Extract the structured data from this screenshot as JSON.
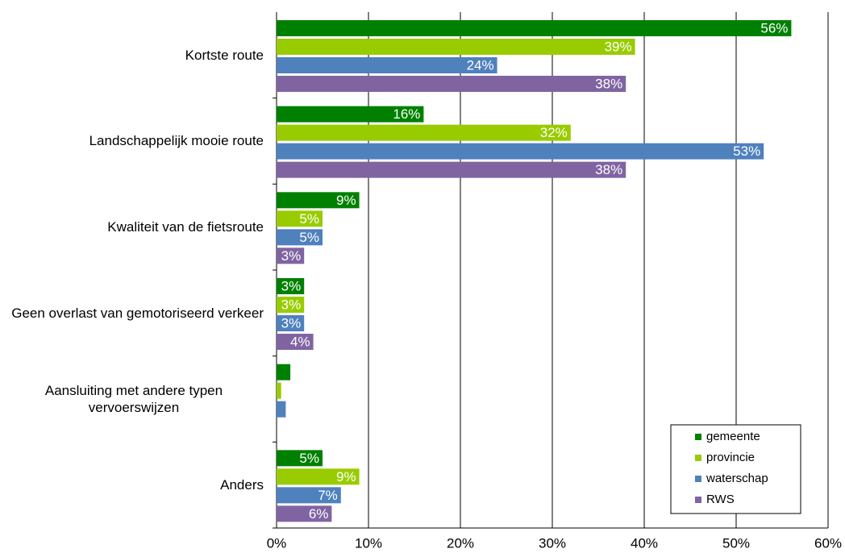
{
  "chart_data": {
    "type": "bar",
    "orientation": "horizontal",
    "categories": [
      "Kortste route",
      "Landschappelijk mooie route",
      "Kwaliteit van de fietsroute",
      "Geen overlast van gemotoriseerd verkeer",
      "Aansluiting met andere typen vervoerswijzen",
      "Anders"
    ],
    "series": [
      {
        "name": "gemeente",
        "color": "#008000",
        "values": [
          56,
          16,
          9,
          3,
          1.5,
          5
        ],
        "value_labels": [
          "56%",
          "16%",
          "9%",
          "3%",
          null,
          "5%"
        ]
      },
      {
        "name": "provincie",
        "color": "#99cc00",
        "values": [
          39,
          32,
          5,
          3,
          0.5,
          9
        ],
        "value_labels": [
          "39%",
          "32%",
          "5%",
          "3%",
          null,
          "9%"
        ]
      },
      {
        "name": "waterschap",
        "color": "#4f81bd",
        "values": [
          24,
          53,
          5,
          3,
          1,
          7
        ],
        "value_labels": [
          "24%",
          "53%",
          "5%",
          "3%",
          null,
          "7%"
        ]
      },
      {
        "name": "RWS",
        "color": "#8064a2",
        "values": [
          38,
          38,
          3,
          4,
          null,
          6
        ],
        "value_labels": [
          "38%",
          "38%",
          "3%",
          "4%",
          null,
          "6%"
        ]
      }
    ],
    "xlim": [
      0,
      60
    ],
    "xticks": [
      {
        "value": 0,
        "label": "0%"
      },
      {
        "value": 10,
        "label": "10%"
      },
      {
        "value": 20,
        "label": "20%"
      },
      {
        "value": 30,
        "label": "30%"
      },
      {
        "value": 40,
        "label": "40%"
      },
      {
        "value": 50,
        "label": "50%"
      },
      {
        "value": 60,
        "label": "60%"
      }
    ],
    "grid": true,
    "legend": "lower right"
  }
}
